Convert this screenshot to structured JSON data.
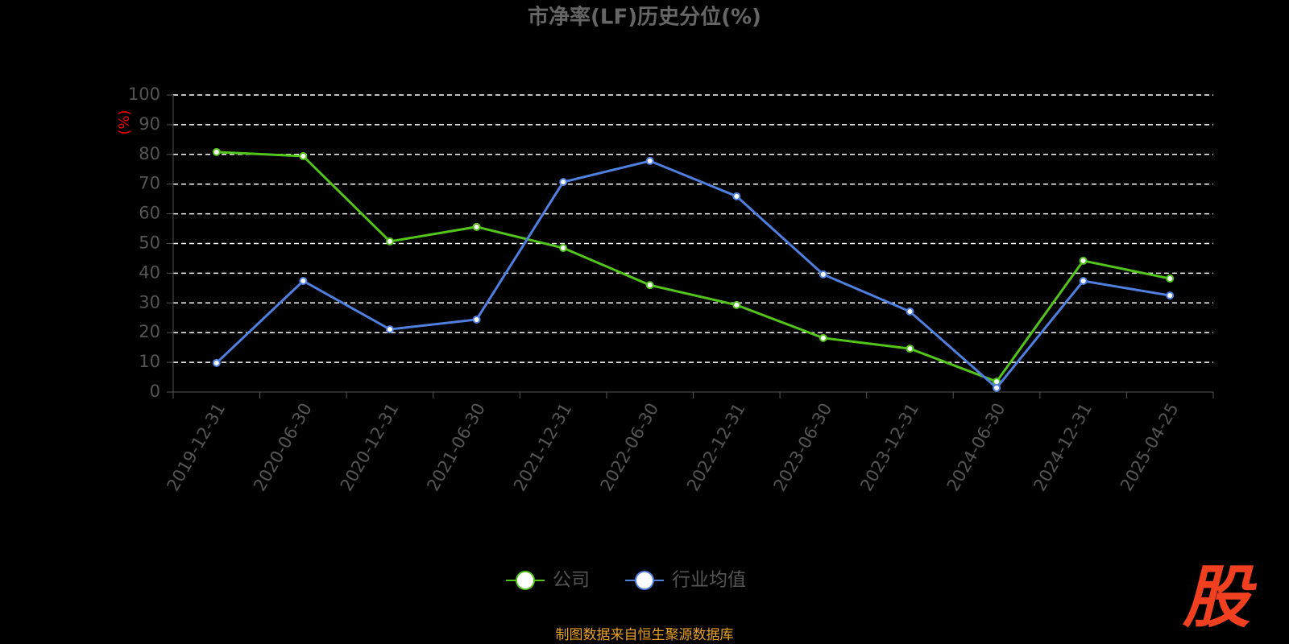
{
  "chart_data": {
    "type": "line",
    "title": "市净率(LF)历史分位(%)",
    "y_label": "(%)",
    "categories": [
      "2019-12-31",
      "2020-06-30",
      "2020-12-31",
      "2021-06-30",
      "2021-12-31",
      "2022-06-30",
      "2022-12-31",
      "2023-06-30",
      "2023-12-31",
      "2024-06-30",
      "2024-12-31",
      "2025-04-25"
    ],
    "series": [
      {
        "name": "公司",
        "color": "#52c41a",
        "values": [
          80.8,
          79.4,
          50.7,
          55.6,
          48.5,
          36.0,
          29.3,
          18.2,
          14.6,
          3.5,
          44.2,
          38.2
        ]
      },
      {
        "name": "行业均值",
        "color": "#4f7fdf",
        "values": [
          9.8,
          37.4,
          21.1,
          24.4,
          70.7,
          77.8,
          65.9,
          39.6,
          27.1,
          1.4,
          37.4,
          32.5
        ]
      }
    ],
    "ylim": [
      0,
      100
    ],
    "yticks": [
      0,
      10,
      20,
      30,
      40,
      50,
      60,
      70,
      80,
      90,
      100
    ],
    "grid": true,
    "legend": "bottom",
    "source": "制图数据来自恒生聚源数据库",
    "watermark": "股"
  }
}
